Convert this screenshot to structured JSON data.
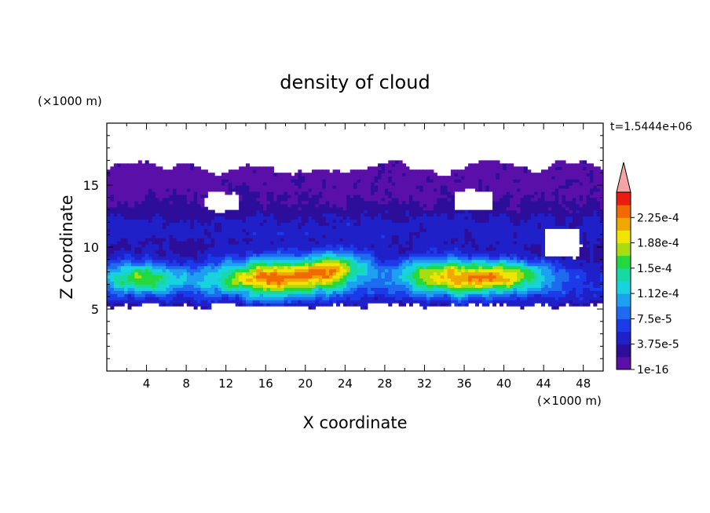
{
  "chart_data": {
    "type": "heatmap",
    "title": "density of cloud",
    "time_label": "t=1.5444e+06",
    "xlabel": "X coordinate",
    "ylabel": "Z coordinate",
    "x_unit": "(×1000 m)",
    "y_unit": "(×1000 m)",
    "x_ticks": [
      "4",
      "8",
      "12",
      "16",
      "20",
      "24",
      "28",
      "32",
      "36",
      "40",
      "44",
      "48"
    ],
    "y_ticks": [
      "5",
      "10",
      "15"
    ],
    "xlim": [
      0,
      50
    ],
    "ylim": [
      0,
      20
    ],
    "colorbar": {
      "labels": [
        "1e-16",
        "3.75e-5",
        "7.5e-5",
        "1.12e-4",
        "1.5e-4",
        "1.88e-4",
        "2.25e-4"
      ],
      "levels": [
        1e-16,
        1.875e-05,
        3.75e-05,
        5.625e-05,
        7.5e-05,
        9.375e-05,
        0.0001125,
        0.00013125,
        0.00015,
        0.00016875,
        0.0001875,
        0.00020625,
        0.000225,
        0.00024375
      ],
      "colors": [
        "#5a10a8",
        "#2c0e9a",
        "#2020c8",
        "#1c3ae8",
        "#1f6bf0",
        "#1ea0f0",
        "#18d2e0",
        "#18d8a4",
        "#24d840",
        "#aadc12",
        "#f0e400",
        "#f0a800",
        "#f06a00",
        "#e81c10"
      ],
      "extend_color": "#f4a4a4"
    }
  }
}
